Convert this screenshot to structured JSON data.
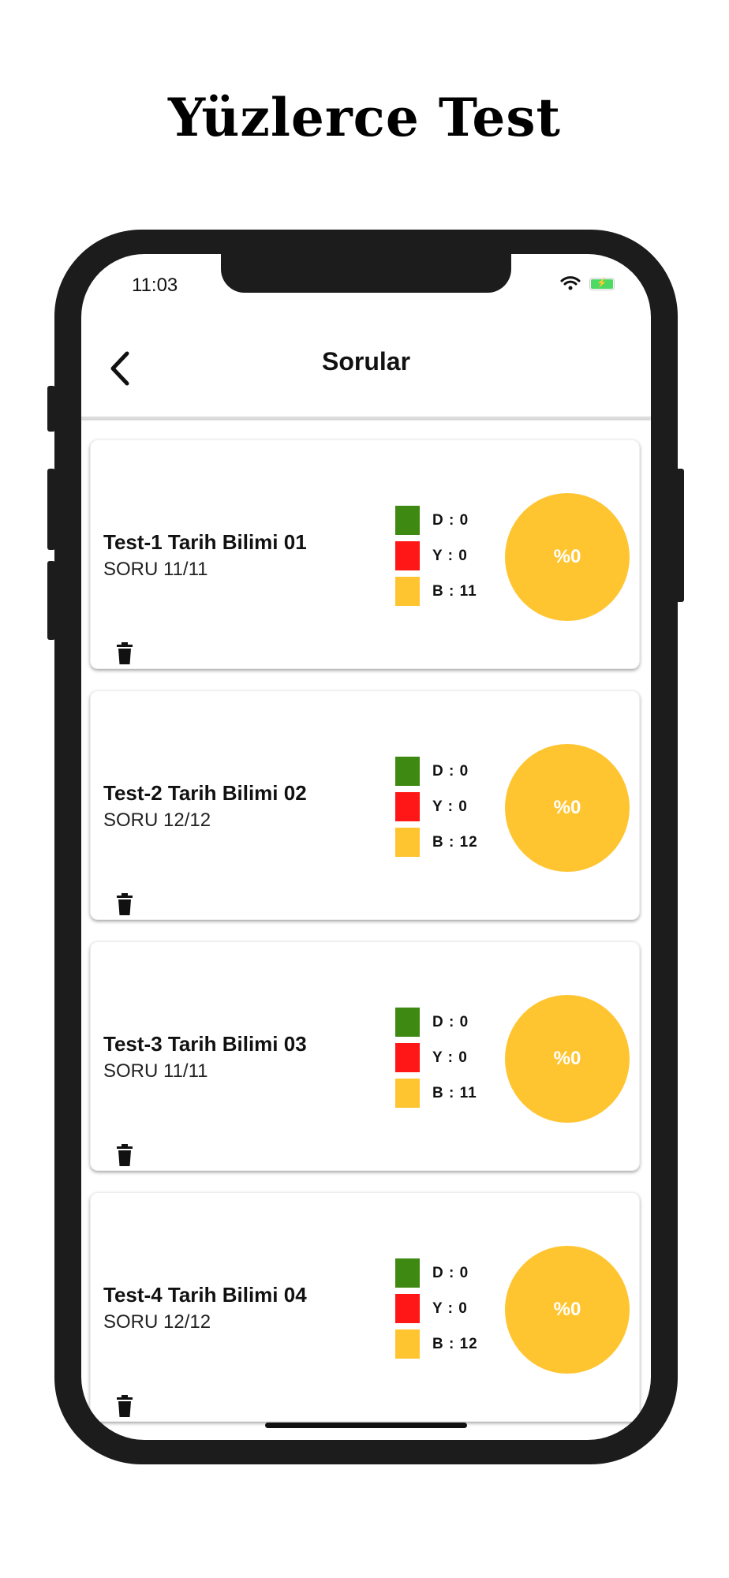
{
  "headline": "Yüzlerce Test",
  "status_bar": {
    "time": "11:03",
    "icons": [
      "wifi-icon",
      "battery-charging-icon"
    ]
  },
  "header": {
    "title": "Sorular",
    "back_icon": "chevron-left-icon"
  },
  "colors": {
    "correct": "#3e8912",
    "wrong": "#ff1616",
    "empty": "#ffc531"
  },
  "cards": [
    {
      "title": "Test-1 Tarih Bilimi 01",
      "subtitle": "SORU 11/11",
      "d": "D : 0",
      "y": "Y : 0",
      "b": "B : 11",
      "percent": "%0"
    },
    {
      "title": "Test-2 Tarih Bilimi 02",
      "subtitle": "SORU 12/12",
      "d": "D : 0",
      "y": "Y : 0",
      "b": "B : 12",
      "percent": "%0"
    },
    {
      "title": "Test-3 Tarih Bilimi 03",
      "subtitle": "SORU 11/11",
      "d": "D : 0",
      "y": "Y : 0",
      "b": "B : 11",
      "percent": "%0"
    },
    {
      "title": "Test-4 Tarih Bilimi 04",
      "subtitle": "SORU 12/12",
      "d": "D : 0",
      "y": "Y : 0",
      "b": "B : 12",
      "percent": "%0"
    }
  ]
}
